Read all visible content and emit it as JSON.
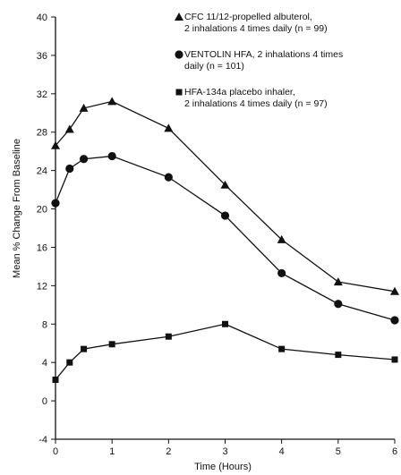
{
  "chart_data": {
    "type": "line",
    "title": "",
    "xlabel": "Time (Hours)",
    "ylabel": "Mean % Change From Baseline",
    "xlim": [
      0,
      6
    ],
    "ylim": [
      -4,
      40
    ],
    "x_ticks": [
      0,
      1,
      2,
      3,
      4,
      5,
      6
    ],
    "y_ticks": [
      -4,
      0,
      4,
      8,
      12,
      16,
      20,
      24,
      28,
      32,
      36,
      40
    ],
    "grid": false,
    "legend_position": "top-right",
    "series": [
      {
        "name": "CFC 11/12-propelled albuterol, 2 inhalations 4 times daily (n = 99)",
        "legend_lines": [
          "CFC 11/12-propelled albuterol,",
          "2 inhalations 4 times daily (n = 99)"
        ],
        "marker": "triangle",
        "color": "#111111",
        "x": [
          0,
          0.25,
          0.5,
          1,
          2,
          3,
          4,
          5,
          6
        ],
        "y": [
          26.6,
          28.3,
          30.5,
          31.2,
          28.4,
          22.5,
          16.8,
          12.4,
          11.4
        ]
      },
      {
        "name": "VENTOLIN HFA, 2 inhalations 4 times daily (n = 101)",
        "legend_lines": [
          "VENTOLIN HFA, 2 inhalations 4 times",
          "daily (n = 101)"
        ],
        "marker": "circle",
        "color": "#111111",
        "x": [
          0,
          0.25,
          0.5,
          1,
          2,
          3,
          4,
          5,
          6
        ],
        "y": [
          20.6,
          24.2,
          25.2,
          25.5,
          23.3,
          19.3,
          13.3,
          10.1,
          8.4
        ]
      },
      {
        "name": "HFA-134a placebo inhaler, 2 inhalations 4 times daily (n = 97)",
        "legend_lines": [
          "HFA-134a placebo inhaler,",
          "2 inhalations 4 times daily (n = 97)"
        ],
        "marker": "square",
        "color": "#111111",
        "x": [
          0,
          0.25,
          0.5,
          1,
          2,
          3,
          4,
          5,
          6
        ],
        "y": [
          2.2,
          4.0,
          5.4,
          5.9,
          6.7,
          8.0,
          5.4,
          4.8,
          4.3
        ]
      }
    ]
  }
}
